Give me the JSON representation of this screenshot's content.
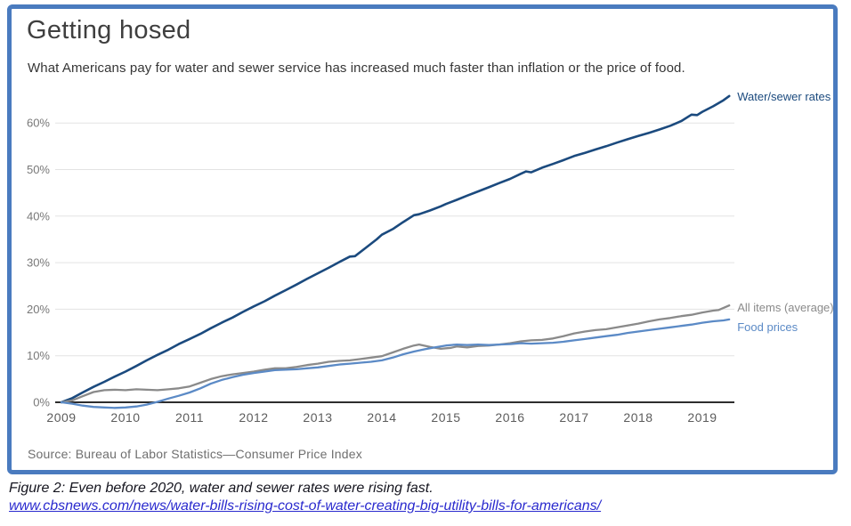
{
  "figure": {
    "title": "Getting hosed",
    "subtitle": "What Americans pay for water and sewer service has increased much faster than inflation or the price of food.",
    "source": "Source: Bureau of Labor Statistics—Consumer Price Index",
    "caption": "Figure 2: Even before 2020, water and sewer rates were rising fast.",
    "link": "www.cbsnews.com/news/water-bills-rising-cost-of-water-creating-big-utility-bills-for-americans/"
  },
  "colors": {
    "border": "#4a7bbf",
    "title": "#3f3f3f",
    "axis": "#2d2d2d",
    "gridline": "#e3e3e3",
    "tick_label": "#787878",
    "x_label": "#5c5c5c",
    "water_line": "#1b4a7e",
    "all_items_line": "#8a8a8a",
    "food_line": "#5b8ac6",
    "link": "#2a2ace"
  },
  "chart_data": {
    "type": "line",
    "title": "Getting hosed",
    "subtitle": "What Americans pay for water and sewer service has increased much faster than inflation or the price of food.",
    "xlabel": "",
    "ylabel": "",
    "units": "percent change since 2009",
    "grid": "horizontal",
    "legend_position": "right-end-labels",
    "xlim": [
      2009,
      2019.5
    ],
    "ylim": [
      -2,
      68
    ],
    "x_ticks": [
      {
        "v": 2009,
        "label": "2009"
      },
      {
        "v": 2010,
        "label": "2010"
      },
      {
        "v": 2011,
        "label": "2011"
      },
      {
        "v": 2012,
        "label": "2012"
      },
      {
        "v": 2013,
        "label": "2013"
      },
      {
        "v": 2014,
        "label": "2014"
      },
      {
        "v": 2015,
        "label": "2015"
      },
      {
        "v": 2016,
        "label": "2016"
      },
      {
        "v": 2017,
        "label": "2017"
      },
      {
        "v": 2018,
        "label": "2018"
      },
      {
        "v": 2019,
        "label": "2019"
      }
    ],
    "y_ticks": [
      {
        "v": 0,
        "label": "0%"
      },
      {
        "v": 10,
        "label": "10%"
      },
      {
        "v": 20,
        "label": "20%"
      },
      {
        "v": 30,
        "label": "30%"
      },
      {
        "v": 40,
        "label": "40%"
      },
      {
        "v": 50,
        "label": "50%"
      },
      {
        "v": 60,
        "label": "60%"
      }
    ],
    "series": [
      {
        "name": "Water/sewer rates",
        "color": "#1b4a7e",
        "width": 2.6,
        "points": [
          [
            2009.0,
            0
          ],
          [
            2009.17,
            0.9
          ],
          [
            2009.33,
            2.1
          ],
          [
            2009.5,
            3.3
          ],
          [
            2009.67,
            4.4
          ],
          [
            2009.83,
            5.5
          ],
          [
            2010.0,
            6.6
          ],
          [
            2010.17,
            7.8
          ],
          [
            2010.33,
            9.0
          ],
          [
            2010.5,
            10.2
          ],
          [
            2010.67,
            11.3
          ],
          [
            2010.83,
            12.5
          ],
          [
            2011.0,
            13.6
          ],
          [
            2011.17,
            14.7
          ],
          [
            2011.33,
            15.9
          ],
          [
            2011.5,
            17.1
          ],
          [
            2011.67,
            18.2
          ],
          [
            2011.83,
            19.4
          ],
          [
            2012.0,
            20.6
          ],
          [
            2012.17,
            21.7
          ],
          [
            2012.33,
            22.9
          ],
          [
            2012.5,
            24.1
          ],
          [
            2012.67,
            25.3
          ],
          [
            2012.83,
            26.5
          ],
          [
            2013.0,
            27.7
          ],
          [
            2013.17,
            28.9
          ],
          [
            2013.33,
            30.1
          ],
          [
            2013.5,
            31.3
          ],
          [
            2013.58,
            31.4
          ],
          [
            2013.75,
            33.2
          ],
          [
            2013.92,
            35.0
          ],
          [
            2014.0,
            36.0
          ],
          [
            2014.17,
            37.2
          ],
          [
            2014.33,
            38.7
          ],
          [
            2014.5,
            40.2
          ],
          [
            2014.58,
            40.4
          ],
          [
            2014.75,
            41.2
          ],
          [
            2014.92,
            42.1
          ],
          [
            2015.0,
            42.6
          ],
          [
            2015.17,
            43.5
          ],
          [
            2015.33,
            44.4
          ],
          [
            2015.5,
            45.3
          ],
          [
            2015.67,
            46.2
          ],
          [
            2015.83,
            47.1
          ],
          [
            2016.0,
            48.0
          ],
          [
            2016.17,
            49.1
          ],
          [
            2016.25,
            49.6
          ],
          [
            2016.33,
            49.4
          ],
          [
            2016.5,
            50.4
          ],
          [
            2016.67,
            51.2
          ],
          [
            2016.83,
            52.0
          ],
          [
            2017.0,
            52.9
          ],
          [
            2017.17,
            53.6
          ],
          [
            2017.33,
            54.3
          ],
          [
            2017.5,
            55.0
          ],
          [
            2017.67,
            55.8
          ],
          [
            2017.83,
            56.5
          ],
          [
            2018.0,
            57.2
          ],
          [
            2018.17,
            57.9
          ],
          [
            2018.33,
            58.6
          ],
          [
            2018.5,
            59.4
          ],
          [
            2018.67,
            60.4
          ],
          [
            2018.83,
            61.8
          ],
          [
            2018.92,
            61.7
          ],
          [
            2019.0,
            62.4
          ],
          [
            2019.17,
            63.6
          ],
          [
            2019.33,
            64.9
          ],
          [
            2019.42,
            65.8
          ]
        ]
      },
      {
        "name": "All items (average)",
        "color": "#8a8a8a",
        "width": 2.3,
        "points": [
          [
            2009.0,
            0
          ],
          [
            2009.17,
            0.4
          ],
          [
            2009.33,
            1.3
          ],
          [
            2009.5,
            2.2
          ],
          [
            2009.67,
            2.6
          ],
          [
            2009.83,
            2.7
          ],
          [
            2010.0,
            2.6
          ],
          [
            2010.17,
            2.8
          ],
          [
            2010.33,
            2.7
          ],
          [
            2010.5,
            2.6
          ],
          [
            2010.67,
            2.8
          ],
          [
            2010.83,
            3.0
          ],
          [
            2011.0,
            3.4
          ],
          [
            2011.17,
            4.2
          ],
          [
            2011.33,
            5.0
          ],
          [
            2011.5,
            5.6
          ],
          [
            2011.67,
            6.0
          ],
          [
            2011.83,
            6.3
          ],
          [
            2012.0,
            6.6
          ],
          [
            2012.17,
            7.0
          ],
          [
            2012.33,
            7.3
          ],
          [
            2012.5,
            7.3
          ],
          [
            2012.67,
            7.6
          ],
          [
            2012.83,
            8.0
          ],
          [
            2013.0,
            8.3
          ],
          [
            2013.17,
            8.7
          ],
          [
            2013.33,
            8.9
          ],
          [
            2013.5,
            9.0
          ],
          [
            2013.67,
            9.3
          ],
          [
            2013.83,
            9.6
          ],
          [
            2014.0,
            9.9
          ],
          [
            2014.17,
            10.7
          ],
          [
            2014.33,
            11.5
          ],
          [
            2014.5,
            12.2
          ],
          [
            2014.58,
            12.4
          ],
          [
            2014.75,
            11.9
          ],
          [
            2014.92,
            11.5
          ],
          [
            2015.08,
            11.7
          ],
          [
            2015.17,
            12.0
          ],
          [
            2015.33,
            11.8
          ],
          [
            2015.5,
            12.1
          ],
          [
            2015.67,
            12.2
          ],
          [
            2015.83,
            12.4
          ],
          [
            2016.0,
            12.7
          ],
          [
            2016.17,
            13.1
          ],
          [
            2016.33,
            13.3
          ],
          [
            2016.5,
            13.4
          ],
          [
            2016.67,
            13.7
          ],
          [
            2016.83,
            14.2
          ],
          [
            2017.0,
            14.8
          ],
          [
            2017.17,
            15.2
          ],
          [
            2017.33,
            15.5
          ],
          [
            2017.5,
            15.7
          ],
          [
            2017.67,
            16.1
          ],
          [
            2017.83,
            16.5
          ],
          [
            2018.0,
            16.9
          ],
          [
            2018.17,
            17.4
          ],
          [
            2018.33,
            17.8
          ],
          [
            2018.5,
            18.1
          ],
          [
            2018.67,
            18.5
          ],
          [
            2018.83,
            18.8
          ],
          [
            2019.0,
            19.3
          ],
          [
            2019.17,
            19.7
          ],
          [
            2019.25,
            19.8
          ],
          [
            2019.42,
            20.8
          ]
        ]
      },
      {
        "name": "Food prices",
        "color": "#5b8ac6",
        "width": 2.3,
        "points": [
          [
            2009.0,
            0
          ],
          [
            2009.17,
            -0.3
          ],
          [
            2009.33,
            -0.7
          ],
          [
            2009.5,
            -1.0
          ],
          [
            2009.67,
            -1.1
          ],
          [
            2009.83,
            -1.2
          ],
          [
            2010.0,
            -1.1
          ],
          [
            2010.17,
            -0.9
          ],
          [
            2010.33,
            -0.5
          ],
          [
            2010.5,
            0.1
          ],
          [
            2010.67,
            0.8
          ],
          [
            2010.83,
            1.4
          ],
          [
            2011.0,
            2.1
          ],
          [
            2011.17,
            3.0
          ],
          [
            2011.33,
            4.0
          ],
          [
            2011.5,
            4.8
          ],
          [
            2011.67,
            5.4
          ],
          [
            2011.83,
            5.9
          ],
          [
            2012.0,
            6.3
          ],
          [
            2012.17,
            6.6
          ],
          [
            2012.33,
            6.9
          ],
          [
            2012.5,
            7.0
          ],
          [
            2012.67,
            7.1
          ],
          [
            2012.83,
            7.3
          ],
          [
            2013.0,
            7.5
          ],
          [
            2013.17,
            7.8
          ],
          [
            2013.33,
            8.1
          ],
          [
            2013.5,
            8.3
          ],
          [
            2013.67,
            8.5
          ],
          [
            2013.83,
            8.7
          ],
          [
            2014.0,
            9.0
          ],
          [
            2014.17,
            9.6
          ],
          [
            2014.33,
            10.3
          ],
          [
            2014.5,
            10.9
          ],
          [
            2014.67,
            11.4
          ],
          [
            2014.83,
            11.8
          ],
          [
            2015.0,
            12.2
          ],
          [
            2015.17,
            12.4
          ],
          [
            2015.33,
            12.3
          ],
          [
            2015.5,
            12.4
          ],
          [
            2015.67,
            12.3
          ],
          [
            2015.83,
            12.4
          ],
          [
            2016.0,
            12.5
          ],
          [
            2016.17,
            12.7
          ],
          [
            2016.33,
            12.6
          ],
          [
            2016.5,
            12.7
          ],
          [
            2016.67,
            12.8
          ],
          [
            2016.83,
            13.0
          ],
          [
            2017.0,
            13.3
          ],
          [
            2017.17,
            13.6
          ],
          [
            2017.33,
            13.9
          ],
          [
            2017.5,
            14.2
          ],
          [
            2017.67,
            14.5
          ],
          [
            2017.83,
            14.9
          ],
          [
            2018.0,
            15.2
          ],
          [
            2018.17,
            15.5
          ],
          [
            2018.33,
            15.8
          ],
          [
            2018.5,
            16.1
          ],
          [
            2018.67,
            16.4
          ],
          [
            2018.83,
            16.7
          ],
          [
            2019.0,
            17.1
          ],
          [
            2019.17,
            17.4
          ],
          [
            2019.33,
            17.6
          ],
          [
            2019.42,
            17.8
          ]
        ]
      }
    ]
  }
}
